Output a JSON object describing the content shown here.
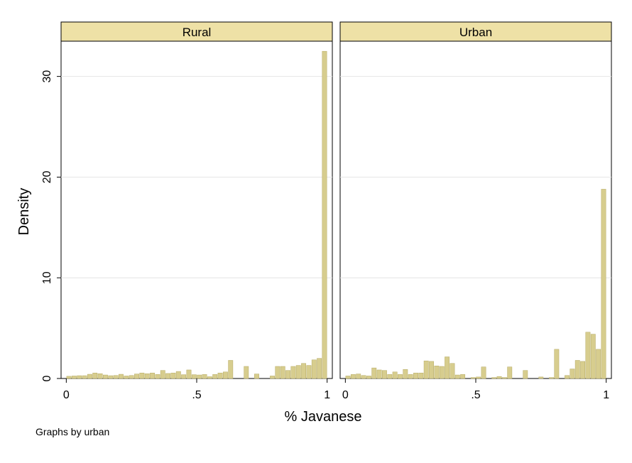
{
  "chart_data": {
    "type": "bar",
    "title": "",
    "xlabel": "% Javanese",
    "ylabel": "Density",
    "note": "Graphs by urban",
    "xlim": [
      -0.02,
      1.02
    ],
    "ylim": [
      0,
      33.5
    ],
    "x_ticks": [
      {
        "value": 0,
        "label": "0"
      },
      {
        "value": 0.5,
        "label": ".5"
      },
      {
        "value": 1,
        "label": "1"
      }
    ],
    "y_ticks": [
      {
        "value": 0,
        "label": "0"
      },
      {
        "value": 10,
        "label": "10"
      },
      {
        "value": 20,
        "label": "20"
      },
      {
        "value": 30,
        "label": "30"
      }
    ],
    "grid": true,
    "bin_width": 0.02,
    "bar_color": "#d7cd8e",
    "bar_edge_color": "#b5aa63",
    "strip_color": "#eee1a6",
    "panels": [
      {
        "name": "Rural",
        "bins": [
          [
            0.0,
            0.22
          ],
          [
            0.02,
            0.25
          ],
          [
            0.04,
            0.28
          ],
          [
            0.06,
            0.28
          ],
          [
            0.08,
            0.42
          ],
          [
            0.1,
            0.55
          ],
          [
            0.12,
            0.48
          ],
          [
            0.14,
            0.35
          ],
          [
            0.16,
            0.28
          ],
          [
            0.18,
            0.3
          ],
          [
            0.2,
            0.42
          ],
          [
            0.22,
            0.25
          ],
          [
            0.24,
            0.3
          ],
          [
            0.26,
            0.45
          ],
          [
            0.28,
            0.55
          ],
          [
            0.3,
            0.48
          ],
          [
            0.32,
            0.55
          ],
          [
            0.34,
            0.4
          ],
          [
            0.36,
            0.8
          ],
          [
            0.38,
            0.5
          ],
          [
            0.4,
            0.55
          ],
          [
            0.42,
            0.7
          ],
          [
            0.44,
            0.38
          ],
          [
            0.46,
            0.85
          ],
          [
            0.48,
            0.38
          ],
          [
            0.5,
            0.35
          ],
          [
            0.52,
            0.4
          ],
          [
            0.54,
            0.18
          ],
          [
            0.56,
            0.4
          ],
          [
            0.58,
            0.55
          ],
          [
            0.6,
            0.65
          ],
          [
            0.62,
            1.8
          ],
          [
            0.64,
            0.0
          ],
          [
            0.66,
            0.0
          ],
          [
            0.68,
            1.2
          ],
          [
            0.7,
            0.0
          ],
          [
            0.72,
            0.45
          ],
          [
            0.74,
            0.0
          ],
          [
            0.76,
            0.0
          ],
          [
            0.78,
            0.25
          ],
          [
            0.8,
            1.2
          ],
          [
            0.82,
            1.2
          ],
          [
            0.84,
            0.8
          ],
          [
            0.86,
            1.2
          ],
          [
            0.88,
            1.3
          ],
          [
            0.9,
            1.5
          ],
          [
            0.92,
            1.3
          ],
          [
            0.94,
            1.85
          ],
          [
            0.96,
            2.0
          ],
          [
            0.98,
            32.5
          ]
        ]
      },
      {
        "name": "Urban",
        "bins": [
          [
            0.0,
            0.25
          ],
          [
            0.02,
            0.4
          ],
          [
            0.04,
            0.45
          ],
          [
            0.06,
            0.3
          ],
          [
            0.08,
            0.25
          ],
          [
            0.1,
            1.05
          ],
          [
            0.12,
            0.85
          ],
          [
            0.14,
            0.8
          ],
          [
            0.16,
            0.4
          ],
          [
            0.18,
            0.65
          ],
          [
            0.2,
            0.4
          ],
          [
            0.22,
            0.9
          ],
          [
            0.24,
            0.4
          ],
          [
            0.26,
            0.55
          ],
          [
            0.28,
            0.55
          ],
          [
            0.3,
            1.75
          ],
          [
            0.32,
            1.7
          ],
          [
            0.34,
            1.25
          ],
          [
            0.36,
            1.2
          ],
          [
            0.38,
            2.15
          ],
          [
            0.4,
            1.5
          ],
          [
            0.42,
            0.35
          ],
          [
            0.44,
            0.4
          ],
          [
            0.46,
            0.0
          ],
          [
            0.48,
            0.1
          ],
          [
            0.5,
            0.15
          ],
          [
            0.52,
            1.15
          ],
          [
            0.54,
            0.0
          ],
          [
            0.56,
            0.1
          ],
          [
            0.58,
            0.2
          ],
          [
            0.6,
            0.1
          ],
          [
            0.62,
            1.15
          ],
          [
            0.64,
            0.0
          ],
          [
            0.66,
            0.0
          ],
          [
            0.68,
            0.8
          ],
          [
            0.7,
            0.0
          ],
          [
            0.72,
            0.0
          ],
          [
            0.74,
            0.15
          ],
          [
            0.76,
            0.0
          ],
          [
            0.78,
            0.1
          ],
          [
            0.8,
            2.9
          ],
          [
            0.82,
            0.0
          ],
          [
            0.84,
            0.3
          ],
          [
            0.86,
            0.95
          ],
          [
            0.88,
            1.8
          ],
          [
            0.9,
            1.7
          ],
          [
            0.92,
            4.6
          ],
          [
            0.94,
            4.4
          ],
          [
            0.96,
            2.9
          ],
          [
            0.98,
            18.8
          ]
        ]
      }
    ]
  }
}
